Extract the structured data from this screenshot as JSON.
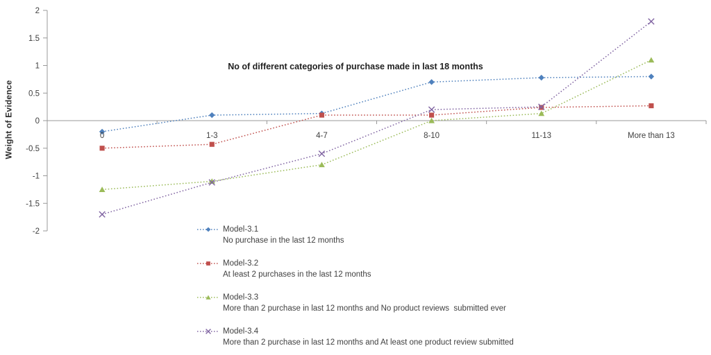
{
  "chart": {
    "title": "No of different categories of purchase made in last 18 months",
    "ylabel": "Weight of Evidence"
  },
  "chart_data": {
    "type": "line",
    "title": "No of different categories of purchase made in last 18 months",
    "title_position": "inside-plot-top-center",
    "ylabel": "Weight of Evidence",
    "categories": [
      "0",
      "1-3",
      "4-7",
      "8-10",
      "11-13",
      "More than 13"
    ],
    "y_ticks": [
      2,
      1.5,
      1,
      0.5,
      0,
      -0.5,
      -1,
      -1.5,
      -2
    ],
    "ylim": [
      -2,
      2
    ],
    "grid": false,
    "line_style": "dotted",
    "legend_position": "below-plot-left",
    "axis_color": "#989898",
    "text_color": "#3f3f3f",
    "series": [
      {
        "name": "Model-3.1",
        "description": "No purchase in the last 12 months",
        "color": "#4F81BD",
        "marker": "diamond",
        "values": [
          -0.2,
          0.1,
          0.13,
          0.7,
          0.78,
          0.8
        ]
      },
      {
        "name": "Model-3.2",
        "description": "At least 2 purchases in the last 12 months",
        "color": "#C0504D",
        "marker": "square",
        "values": [
          -0.5,
          -0.43,
          0.1,
          0.1,
          0.24,
          0.27
        ]
      },
      {
        "name": "Model-3.3",
        "description": "More than 2 purchase in last 12 months and No product reviews  submitted ever",
        "color": "#9BBB59",
        "marker": "triangle",
        "values": [
          -1.25,
          -1.1,
          -0.8,
          0,
          0.13,
          1.1
        ]
      },
      {
        "name": "Model-3.4",
        "description": "More than 2 purchase in last 12 months and At least one product review submitted",
        "color": "#8064A2",
        "marker": "x",
        "values": [
          -1.7,
          -1.12,
          -0.6,
          0.2,
          0.25,
          1.8
        ]
      }
    ]
  }
}
